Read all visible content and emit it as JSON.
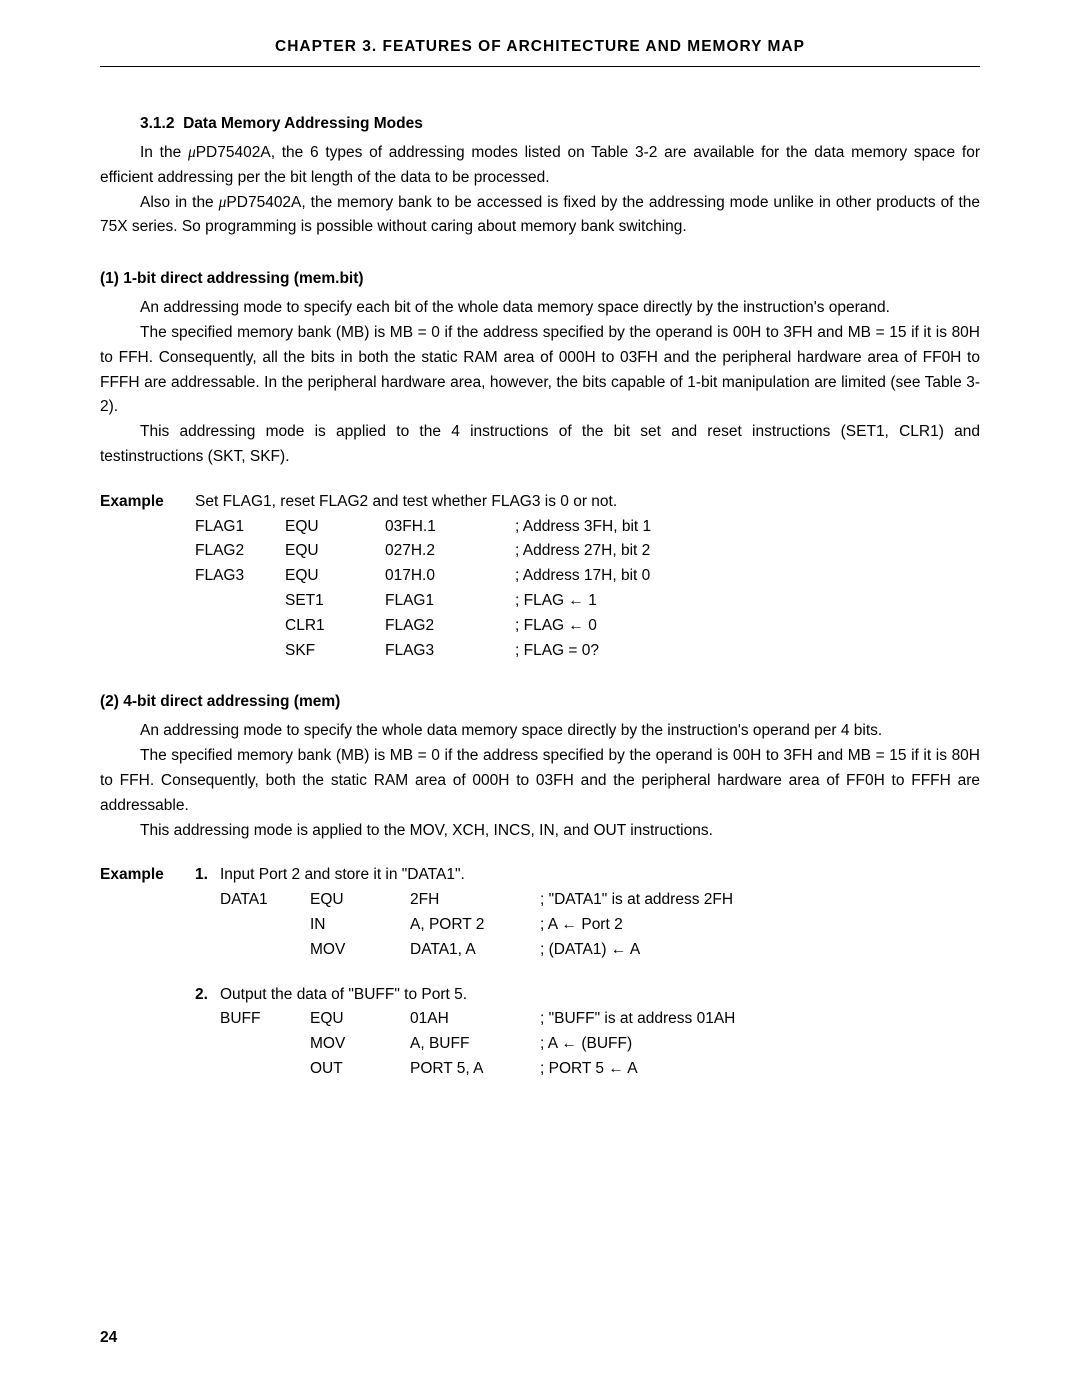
{
  "header": "CHAPTER 3.  FEATURES OF ARCHITECTURE AND MEMORY MAP",
  "section": {
    "number": "3.1.2",
    "title": "Data Memory Addressing Modes"
  },
  "intro": {
    "p1a": "In the ",
    "p1b": "PD75402A, the 6 types of addressing modes listed on Table 3-2 are available for the data memory space for efficient addressing per the bit length of the data to be processed.",
    "p2a": "Also in the ",
    "p2b": "PD75402A, the memory bank to be accessed is fixed by the addressing mode unlike in other products of the 75X series. So programming is possible without caring about memory bank switching."
  },
  "sub1": {
    "title": "(1)   1-bit direct addressing (mem.bit)",
    "p1": "An addressing mode to specify each bit of the whole data memory space directly by the instruction's operand.",
    "p2": "The specified memory bank (MB) is MB = 0 if the address specified by the operand is 00H to 3FH and MB = 15 if it is 80H to FFH. Consequently, all the bits in both the static RAM area of 000H to 03FH and the peripheral hardware area of FF0H to FFFH are addressable. In the peripheral hardware area, however, the bits capable of 1-bit manipulation are limited (see Table 3-2).",
    "p3": "This addressing mode is applied to the 4 instructions of the bit set and reset instructions (SET1, CLR1) and testinstructions (SKT, SKF)."
  },
  "example1": {
    "label": "Example",
    "desc": "Set FLAG1, reset FLAG2 and test whether FLAG3 is 0 or not.",
    "rows": [
      {
        "l": "FLAG1",
        "i": "EQU",
        "o": "03FH.1",
        "c": "; Address 3FH, bit 1"
      },
      {
        "l": "FLAG2",
        "i": "EQU",
        "o": "027H.2",
        "c": "; Address 27H, bit 2"
      },
      {
        "l": "FLAG3",
        "i": "EQU",
        "o": "017H.0",
        "c": "; Address 17H, bit 0"
      },
      {
        "l": "",
        "i": "",
        "o": "",
        "c": ""
      },
      {
        "l": "",
        "i": "SET1",
        "o": "FLAG1",
        "c": "; FLAG ← 1"
      },
      {
        "l": "",
        "i": "CLR1",
        "o": "FLAG2",
        "c": "; FLAG ← 0"
      },
      {
        "l": "",
        "i": "SKF",
        "o": "FLAG3",
        "c": "; FLAG = 0?"
      }
    ]
  },
  "sub2": {
    "title": "(2)   4-bit direct addressing (mem)",
    "p1": "An addressing mode to specify the whole data memory space directly by the instruction's operand per 4 bits.",
    "p2": "The specified memory bank (MB) is MB = 0 if the address specified by the operand is 00H to 3FH and MB = 15 if it is 80H to FFH. Consequently, both the static RAM area of 000H to 03FH and the peripheral hardware area of FF0H to FFFH are addressable.",
    "p3": "This addressing mode is applied to the MOV, XCH, INCS, IN, and OUT instructions."
  },
  "example2": {
    "label": "Example",
    "num1": "1.",
    "desc1": "Input Port 2 and store it in \"DATA1\".",
    "rows1": [
      {
        "l": "DATA1",
        "i": "EQU",
        "o": "2FH",
        "c": "; \"DATA1\" is at address 2FH"
      },
      {
        "l": "",
        "i": "IN",
        "o": "A, PORT 2",
        "c": "; A ← Port 2"
      },
      {
        "l": "",
        "i": "MOV",
        "o": "DATA1, A",
        "c": "; (DATA1) ← A"
      }
    ],
    "num2": "2.",
    "desc2": "Output the data of \"BUFF\" to Port 5.",
    "rows2": [
      {
        "l": "BUFF",
        "i": "EQU",
        "o": "01AH",
        "c": "; \"BUFF\" is at address 01AH"
      },
      {
        "l": "",
        "i": "MOV",
        "o": "A, BUFF",
        "c": "; A ← (BUFF)"
      },
      {
        "l": "",
        "i": "OUT",
        "o": "PORT 5, A",
        "c": "; PORT 5 ← A"
      }
    ]
  },
  "pageNumber": "24"
}
